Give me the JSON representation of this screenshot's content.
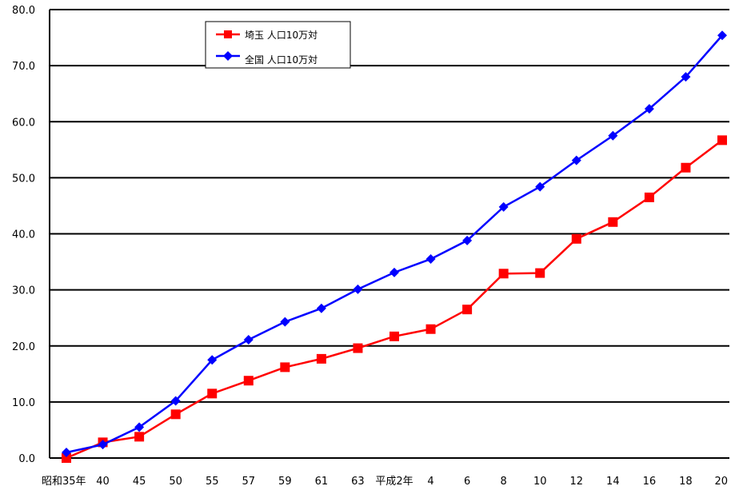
{
  "chart_data": {
    "type": "line",
    "title": "",
    "xlabel": "",
    "ylabel": "",
    "ylim": [
      0,
      80
    ],
    "yticks": [
      "0.0",
      "10.0",
      "20.0",
      "30.0",
      "40.0",
      "50.0",
      "60.0",
      "70.0",
      "80.0"
    ],
    "grid": true,
    "legend_position": "top-left",
    "categories": [
      "昭和35年",
      "40",
      "45",
      "50",
      "55",
      "57",
      "59",
      "61",
      "63",
      "平成2年",
      "4",
      "6",
      "8",
      "10",
      "12",
      "14",
      "16",
      "18",
      "20"
    ],
    "series": [
      {
        "name": "埼玉 人口10万対",
        "color": "#ff0000",
        "marker": "square",
        "values": [
          0.0,
          2.8,
          3.8,
          7.8,
          11.5,
          13.8,
          16.2,
          17.7,
          19.6,
          21.7,
          23.0,
          26.5,
          32.9,
          33.0,
          39.1,
          42.1,
          46.5,
          51.8,
          56.7
        ]
      },
      {
        "name": "全国 人口10万対",
        "color": "#0000ff",
        "marker": "diamond",
        "values": [
          1.0,
          2.4,
          5.5,
          10.2,
          17.5,
          21.1,
          24.3,
          26.7,
          30.1,
          33.1,
          35.5,
          38.8,
          44.8,
          48.4,
          53.1,
          57.5,
          62.3,
          68.0,
          75.4
        ]
      }
    ]
  }
}
